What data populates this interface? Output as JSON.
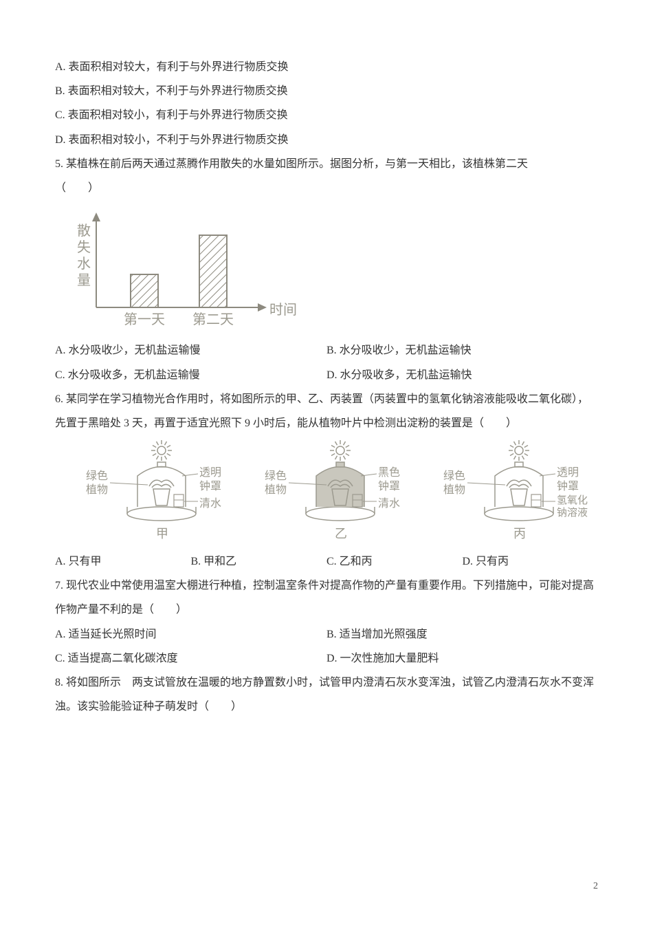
{
  "q4": {
    "A": "A. 表面积相对较大，有利于与外界进行物质交换",
    "B": "B. 表面积相对较大，不利于与外界进行物质交换",
    "C": "C. 表面积相对较小，有利于与外界进行物质交换",
    "D": "D. 表面积相对较小，不利于与外界进行物质交换"
  },
  "q5": {
    "stem": "5. 某植株在前后两天通过蒸腾作用散失的水量如图所示。据图分析，与第一天相比，该植株第二天",
    "blank": "（　　）",
    "chart": {
      "y_label": "散失水量",
      "x_label": "时间",
      "x1": "第一天",
      "x2": "第二天",
      "axis_color": "#8d8a7f",
      "bar_stroke": "#8d8a7f",
      "label_color": "#9c9a8f",
      "font_size": 20,
      "bar1_h": 48,
      "bar2_h": 105
    },
    "A": "A. 水分吸收少，无机盐运输慢",
    "B": "B. 水分吸收少，无机盐运输快",
    "C": "C. 水分吸收多，无机盐运输慢",
    "D": "D. 水分吸收多，无机盐运输快"
  },
  "q6": {
    "stem": "6. 某同学在学习植物光合作用时，将如图所示的甲、乙、丙装置（丙装置中的氢氧化钠溶液能吸收二氧化碳），先置于黑暗处 3 天，再置于适宜光照下 9 小时后，能从植物叶片中检测出淀粉的装置是（　　）",
    "setup": {
      "label_color": "#9c9a8f",
      "stroke": "#9c9a8f",
      "left_label": "绿色植物",
      "right_label_a": "透明钟罩",
      "right_label_b": "黑色钟罩",
      "liq_a": "清水",
      "liq_c1": "透明钟罩",
      "liq_c2": "氢氧化钠溶液",
      "cap_a": "甲",
      "cap_b": "乙",
      "cap_c": "丙",
      "green_left": "绿色植物"
    },
    "A": "A. 只有甲",
    "B": "B. 甲和乙",
    "C": "C. 乙和丙",
    "D": "D. 只有丙"
  },
  "q7": {
    "stem": "7. 现代农业中常使用温室大棚进行种植，控制温室条件对提高作物的产量有重要作用。下列措施中，可能对提高作物产量不利的是（　　）",
    "A": "A. 适当延长光照时间",
    "B": "B. 适当增加光照强度",
    "C": "C. 适当提高二氧化碳浓度",
    "D": "D. 一次性施加大量肥料"
  },
  "q8": {
    "stem": "8. 将如图所示　两支试管放在温暖的地方静置数小时，试管甲内澄清石灰水变浑浊，试管乙内澄清石灰水不变浑浊。该实验能验证种子萌发时（　　）"
  },
  "page_number": "2"
}
